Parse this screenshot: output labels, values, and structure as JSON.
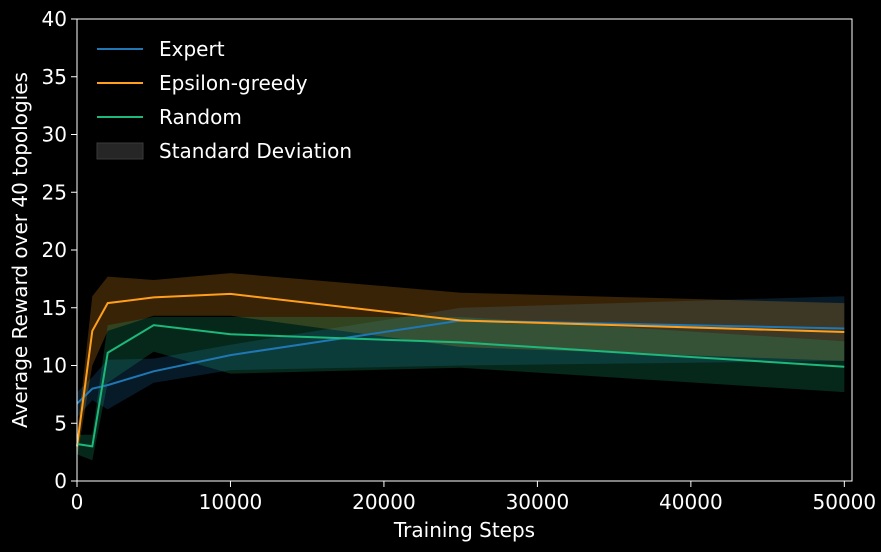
{
  "chart_data": {
    "type": "line",
    "xlabel": "Training Steps",
    "ylabel": "Average Reward over 40 topologies",
    "xlim": [
      0,
      50500
    ],
    "ylim": [
      0,
      40
    ],
    "x_ticks": [
      0,
      10000,
      20000,
      30000,
      40000,
      50000
    ],
    "y_ticks": [
      0,
      5,
      10,
      15,
      20,
      25,
      30,
      35,
      40
    ],
    "grid": false,
    "legend_position": "top-left",
    "x": [
      0,
      1000,
      2000,
      5000,
      10000,
      25000,
      50000
    ],
    "series": [
      {
        "name": "Expert",
        "color": "#1f77b4",
        "values": [
          6.7,
          8.0,
          8.3,
          9.5,
          10.9,
          13.9,
          13.2
        ],
        "lower": [
          5.5,
          7.0,
          6.2,
          8.5,
          9.6,
          10.0,
          10.4
        ],
        "upper": [
          7.7,
          9.0,
          10.5,
          10.6,
          11.8,
          15.0,
          16.0
        ]
      },
      {
        "name": "Epsilon-greedy",
        "color": "#ff9f1c",
        "values": [
          3.0,
          13.0,
          15.4,
          15.9,
          16.2,
          13.9,
          12.9
        ],
        "lower": [
          2.0,
          10.0,
          13.0,
          14.3,
          14.3,
          11.6,
          10.4
        ],
        "upper": [
          4.0,
          16.0,
          17.7,
          17.4,
          18.0,
          16.3,
          15.4
        ]
      },
      {
        "name": "Random",
        "color": "#1db87a",
        "values": [
          3.2,
          3.0,
          11.1,
          13.5,
          12.7,
          12.0,
          9.9
        ],
        "lower": [
          2.3,
          1.8,
          8.5,
          11.2,
          9.3,
          9.8,
          7.7
        ],
        "upper": [
          4.0,
          4.0,
          13.5,
          14.2,
          14.2,
          14.2,
          12.1
        ]
      }
    ],
    "band_label": "Standard Deviation"
  }
}
